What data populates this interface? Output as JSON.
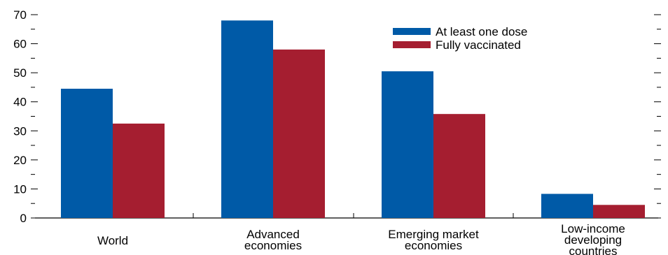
{
  "chart_data": {
    "type": "bar",
    "categories": [
      [
        "World"
      ],
      [
        "Advanced",
        "economies"
      ],
      [
        "Emerging market",
        "economies"
      ],
      [
        "Low-income",
        "developing",
        "countries"
      ]
    ],
    "series": [
      {
        "name": "At least one dose",
        "color": "#005aa7",
        "values": [
          44.5,
          68,
          50.5,
          8.3
        ]
      },
      {
        "name": "Fully vaccinated",
        "color": "#a51e30",
        "values": [
          32.5,
          58,
          35.8,
          4.5
        ]
      }
    ],
    "ylim": [
      0,
      70
    ],
    "yticks": [
      0,
      10,
      20,
      30,
      40,
      50,
      60,
      70
    ],
    "legend_position": "top-right",
    "grid": false
  }
}
